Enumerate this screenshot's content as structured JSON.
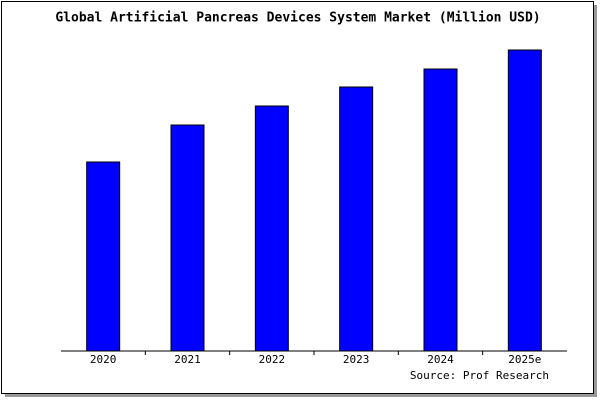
{
  "chart_data": {
    "type": "bar",
    "title": "Global Artificial Pancreas Devices System Market (Million USD)",
    "categories": [
      "2020",
      "2021",
      "2022",
      "2023",
      "2024",
      "2025e"
    ],
    "values": [
      189,
      226,
      245,
      264,
      282,
      301
    ],
    "color": "#0000ff",
    "ylim": [
      0,
      310
    ],
    "source": "Source: Prof Research"
  }
}
